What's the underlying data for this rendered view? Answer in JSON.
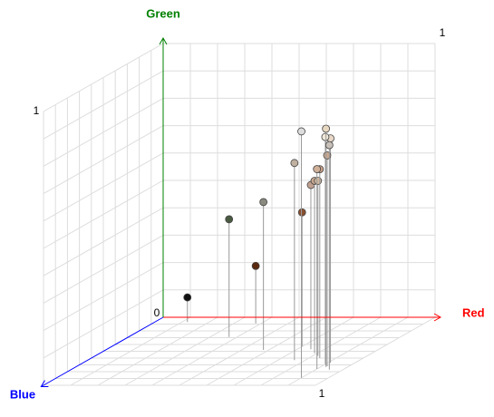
{
  "chart_data": {
    "type": "scatter3d",
    "xlabel": "Red",
    "ylabel": "Green",
    "zlabel": "Blue",
    "axis_colors": {
      "x": "#ff0000",
      "y": "#008000",
      "z": "#0000ff"
    },
    "xlim": [
      0,
      1
    ],
    "ylim": [
      0,
      1
    ],
    "zlim": [
      0,
      1
    ],
    "xticks": [
      0,
      1
    ],
    "yticks": [
      1
    ],
    "zticks": [
      1
    ],
    "grid": true,
    "x": [
      0.12,
      0.37,
      0.38,
      0.58,
      0.9,
      0.76,
      0.7,
      0.75,
      0.79,
      0.9,
      0.84,
      0.82,
      0.92,
      0.9,
      0.91,
      0.95,
      0.92
    ],
    "y": [
      0.09,
      0.43,
      0.21,
      0.54,
      0.9,
      0.72,
      0.49,
      0.6,
      0.63,
      0.73,
      0.69,
      0.64,
      0.87,
      0.83,
      0.82,
      0.82,
      0.77
    ],
    "z": [
      0.07,
      0.29,
      0.09,
      0.48,
      0.89,
      0.63,
      0.43,
      0.47,
      0.53,
      0.76,
      0.6,
      0.57,
      0.73,
      0.69,
      0.67,
      0.77,
      0.72
    ],
    "colors": [
      "#111111",
      "#4a5a40",
      "#5a2a10",
      "#8a8a80",
      "#dddddd",
      "#c0b0a0",
      "#8a5030",
      "#c0a090",
      "#c8a890",
      "#d0b098",
      "#c8a088",
      "#d0b8a0",
      "#e8d8c0",
      "#f0e8d8",
      "#e8d8c8",
      "#c8c0b8",
      "#c8a890"
    ]
  }
}
